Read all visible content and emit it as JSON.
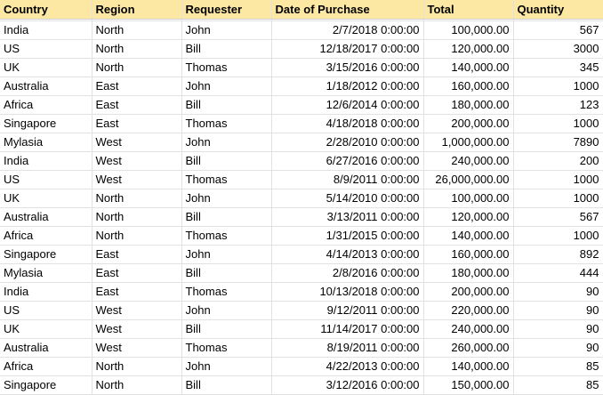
{
  "columns": [
    "Country",
    "Region",
    "Requester",
    "Date of Purchase",
    "Total",
    "Quantity"
  ],
  "rows": [
    {
      "country": "India",
      "region": "North",
      "requester": "John",
      "date": "2/7/2018 0:00:00",
      "total": "100,000.00",
      "quantity": "567"
    },
    {
      "country": "US",
      "region": "North",
      "requester": "Bill",
      "date": "12/18/2017 0:00:00",
      "total": "120,000.00",
      "quantity": "3000"
    },
    {
      "country": "UK",
      "region": "North",
      "requester": "Thomas",
      "date": "3/15/2016 0:00:00",
      "total": "140,000.00",
      "quantity": "345"
    },
    {
      "country": "Australia",
      "region": "East",
      "requester": "John",
      "date": "1/18/2012 0:00:00",
      "total": "160,000.00",
      "quantity": "1000"
    },
    {
      "country": "Africa",
      "region": "East",
      "requester": "Bill",
      "date": "12/6/2014 0:00:00",
      "total": "180,000.00",
      "quantity": "123"
    },
    {
      "country": "Singapore",
      "region": "East",
      "requester": "Thomas",
      "date": "4/18/2018 0:00:00",
      "total": "200,000.00",
      "quantity": "1000"
    },
    {
      "country": "Mylasia",
      "region": "West",
      "requester": "John",
      "date": "2/28/2010 0:00:00",
      "total": "1,000,000.00",
      "quantity": "7890"
    },
    {
      "country": "India",
      "region": "West",
      "requester": "Bill",
      "date": "6/27/2016 0:00:00",
      "total": "240,000.00",
      "quantity": "200"
    },
    {
      "country": "US",
      "region": "West",
      "requester": "Thomas",
      "date": "8/9/2011 0:00:00",
      "total": "26,000,000.00",
      "quantity": "1000"
    },
    {
      "country": "UK",
      "region": "North",
      "requester": "John",
      "date": "5/14/2010 0:00:00",
      "total": "100,000.00",
      "quantity": "1000"
    },
    {
      "country": "Australia",
      "region": "North",
      "requester": "Bill",
      "date": "3/13/2011 0:00:00",
      "total": "120,000.00",
      "quantity": "567"
    },
    {
      "country": "Africa",
      "region": "North",
      "requester": "Thomas",
      "date": "1/31/2015 0:00:00",
      "total": "140,000.00",
      "quantity": "1000"
    },
    {
      "country": "Singapore",
      "region": "East",
      "requester": "John",
      "date": "4/14/2013 0:00:00",
      "total": "160,000.00",
      "quantity": "892"
    },
    {
      "country": "Mylasia",
      "region": "East",
      "requester": "Bill",
      "date": "2/8/2016 0:00:00",
      "total": "180,000.00",
      "quantity": "444"
    },
    {
      "country": "India",
      "region": "East",
      "requester": "Thomas",
      "date": "10/13/2018 0:00:00",
      "total": "200,000.00",
      "quantity": "90"
    },
    {
      "country": "US",
      "region": "West",
      "requester": "John",
      "date": "9/12/2011 0:00:00",
      "total": "220,000.00",
      "quantity": "90"
    },
    {
      "country": "UK",
      "region": "West",
      "requester": "Bill",
      "date": "11/14/2017 0:00:00",
      "total": "240,000.00",
      "quantity": "90"
    },
    {
      "country": "Australia",
      "region": "West",
      "requester": "Thomas",
      "date": "8/19/2011 0:00:00",
      "total": "260,000.00",
      "quantity": "90"
    },
    {
      "country": "Africa",
      "region": "North",
      "requester": "John",
      "date": "4/22/2013 0:00:00",
      "total": "140,000.00",
      "quantity": "85"
    },
    {
      "country": "Singapore",
      "region": "North",
      "requester": "Bill",
      "date": "3/12/2016 0:00:00",
      "total": "150,000.00",
      "quantity": "85"
    }
  ],
  "colors": {
    "header_background": "#fce8a3",
    "grid_line": "#e2e2e2"
  }
}
